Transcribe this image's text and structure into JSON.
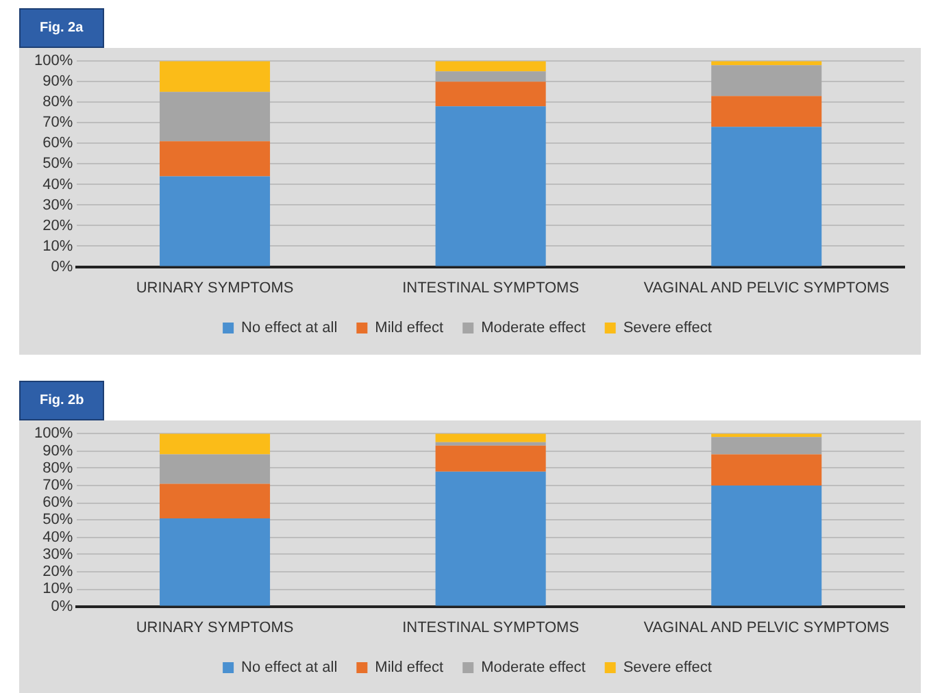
{
  "chart_data": [
    {
      "type": "bar",
      "title": "Fig. 2a",
      "stacked": true,
      "categories": [
        "URINARY SYMPTOMS",
        "INTESTINAL SYMPTOMS",
        "VAGINAL AND PELVIC SYMPTOMS"
      ],
      "ylim": [
        0,
        100
      ],
      "yticks": [
        {
          "value": 0,
          "label": "0%"
        },
        {
          "value": 10,
          "label": "10%"
        },
        {
          "value": 20,
          "label": "20%"
        },
        {
          "value": 30,
          "label": "30%"
        },
        {
          "value": 40,
          "label": "40%"
        },
        {
          "value": 50,
          "label": "50%"
        },
        {
          "value": 60,
          "label": "60%"
        },
        {
          "value": 70,
          "label": "70%"
        },
        {
          "value": 80,
          "label": "80%"
        },
        {
          "value": 90,
          "label": "90%"
        },
        {
          "value": 100,
          "label": "100%"
        }
      ],
      "grid": "y",
      "legend": "bottom",
      "series": [
        {
          "name": "No effect at all",
          "color": "#4a90d0",
          "values": [
            44,
            78,
            68
          ]
        },
        {
          "name": "Mild effect",
          "color": "#e8702a",
          "values": [
            17,
            12,
            15
          ]
        },
        {
          "name": "Moderate effect",
          "color": "#a5a5a5",
          "values": [
            24,
            5,
            15
          ]
        },
        {
          "name": "Severe effect",
          "color": "#fbbc18",
          "values": [
            15,
            5,
            2
          ]
        }
      ]
    },
    {
      "type": "bar",
      "title": "Fig. 2b",
      "stacked": true,
      "categories": [
        "URINARY SYMPTOMS",
        "INTESTINAL SYMPTOMS",
        "VAGINAL AND PELVIC SYMPTOMS"
      ],
      "ylim": [
        0,
        100
      ],
      "yticks": [
        {
          "value": 0,
          "label": "0%"
        },
        {
          "value": 10,
          "label": "10%"
        },
        {
          "value": 20,
          "label": "20%"
        },
        {
          "value": 30,
          "label": "30%"
        },
        {
          "value": 40,
          "label": "40%"
        },
        {
          "value": 50,
          "label": "50%"
        },
        {
          "value": 60,
          "label": "60%"
        },
        {
          "value": 70,
          "label": "70%"
        },
        {
          "value": 80,
          "label": "80%"
        },
        {
          "value": 90,
          "label": "90%"
        },
        {
          "value": 100,
          "label": "100%"
        }
      ],
      "grid": "y",
      "legend": "bottom",
      "series": [
        {
          "name": "No effect at all",
          "color": "#4a90d0",
          "values": [
            51,
            78,
            70
          ]
        },
        {
          "name": "Mild effect",
          "color": "#e8702a",
          "values": [
            20,
            15,
            18
          ]
        },
        {
          "name": "Moderate effect",
          "color": "#a5a5a5",
          "values": [
            17,
            2,
            10
          ]
        },
        {
          "name": "Severe effect",
          "color": "#fbbc18",
          "values": [
            12,
            5,
            2
          ]
        }
      ]
    }
  ]
}
